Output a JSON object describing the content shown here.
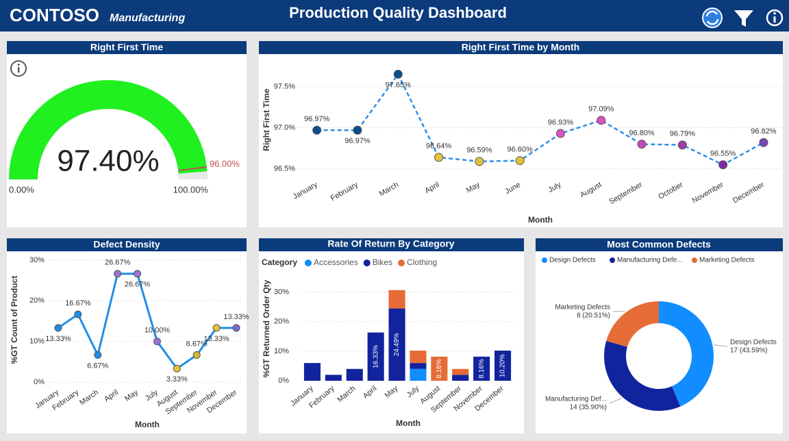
{
  "header": {
    "brand": "CONTOSO",
    "brand_sub": "Manufacturing",
    "title": "Production Quality Dashboard"
  },
  "chart_data": [
    {
      "type": "gauge",
      "title": "Right First Time",
      "values": [
        97.4
      ],
      "value_labels": [
        "97.40%"
      ],
      "color": "#20f020",
      "ylim": [
        0,
        100
      ],
      "yticks": [
        {
          "value": 0,
          "label": "0.00%"
        },
        {
          "value": 100,
          "label": "100.00%"
        }
      ],
      "target": {
        "value": 96,
        "label": "96.00%"
      },
      "target_color": "#c0504d"
    },
    {
      "type": "line",
      "title": "Right First Time by Month",
      "y_label": "Right First Time",
      "x_label": "Month",
      "categories": [
        "January",
        "February",
        "March",
        "April",
        "May",
        "June",
        "July",
        "August",
        "September",
        "October",
        "November",
        "December"
      ],
      "values": [
        96.97,
        96.97,
        97.65,
        96.64,
        96.59,
        96.6,
        96.93,
        97.09,
        96.8,
        96.79,
        96.55,
        96.82
      ],
      "value_labels": [
        "96.97%",
        "96.97%",
        "97.65%",
        "96.64%",
        "96.59%",
        "96.60%",
        "96.93%",
        "97.09%",
        "96.80%",
        "96.79%",
        "96.55%",
        "96.82%"
      ],
      "color": "#2e8ee6",
      "dashed": true,
      "point_colors": [
        "#0b4f8a",
        "#0b4f8a",
        "#0b4f8a",
        "#e2c23a",
        "#e2c23a",
        "#e2c23a",
        "#e050c8",
        "#d94fc4",
        "#c648b8",
        "#a03aa8",
        "#7d2aa6",
        "#7a45bd"
      ],
      "ylim": [
        96.43,
        97.72
      ],
      "yticks": [
        {
          "value": 96.5,
          "label": "96.5%"
        },
        {
          "value": 97,
          "label": "97.0%"
        },
        {
          "value": 97.5,
          "label": "97.5%"
        }
      ],
      "grid": true
    },
    {
      "type": "line",
      "title": "Defect Density",
      "y_label": "%GT Count of Product",
      "x_label": "Month",
      "categories": [
        "January",
        "February",
        "March",
        "April",
        "May",
        "July",
        "August",
        "September",
        "November",
        "December"
      ],
      "values": [
        13.33,
        16.67,
        6.67,
        26.67,
        26.67,
        10,
        3.33,
        6.67,
        13.33,
        13.33
      ],
      "value_labels": [
        "13.33%",
        "16.67%",
        "6.67%",
        "26.67%",
        "26.67%",
        "10.00%",
        "3.33%",
        "6.67%",
        "13.33%",
        "13.33%"
      ],
      "color": "#1f8de8",
      "dashed": false,
      "point_colors": [
        "#1f8de8",
        "#1f8de8",
        "#1f8de8",
        "#9a72d6",
        "#9a72d6",
        "#9a72d6",
        "#e8c33a",
        "#d6b82f",
        "#e8c33a",
        "#7a6ad0"
      ],
      "ylim": [
        0,
        31
      ],
      "yticks": [
        {
          "value": 0,
          "label": "0%"
        },
        {
          "value": 10,
          "label": "10%"
        },
        {
          "value": 20,
          "label": "20%"
        },
        {
          "value": 30,
          "label": "30%"
        }
      ],
      "grid": true
    },
    {
      "type": "stacked_bar",
      "title": "Rate Of Return By Category",
      "legend_title": "Category",
      "y_label": "%GT Returned Order Qty",
      "x_label": "Month",
      "categories": [
        "January",
        "February",
        "March",
        "April",
        "May",
        "July",
        "August",
        "September",
        "November",
        "December"
      ],
      "series": [
        {
          "name": "Accessories",
          "color": "#118dff",
          "values": [
            null,
            null,
            null,
            null,
            null,
            4,
            null,
            null,
            null,
            null
          ],
          "value_labels": [
            null,
            null,
            null,
            null,
            null,
            null,
            null,
            null,
            null,
            null
          ]
        },
        {
          "name": "Bikes",
          "color": "#12239e",
          "values": [
            6,
            2,
            4,
            16.33,
            24.49,
            2,
            null,
            2,
            8.16,
            10.2
          ],
          "value_labels": [
            null,
            null,
            null,
            "16.33%",
            "24.49%",
            null,
            null,
            null,
            "8.16%",
            "10.20%"
          ]
        },
        {
          "name": "Clothing",
          "color": "#e66c37",
          "values": [
            null,
            null,
            null,
            null,
            6.2,
            4.2,
            8.16,
            2,
            null,
            null
          ],
          "value_labels": [
            null,
            null,
            null,
            null,
            null,
            null,
            "8.16%",
            null,
            null,
            null
          ]
        }
      ],
      "ylim": [
        0,
        32
      ],
      "yticks": [
        {
          "value": 0,
          "label": "0%"
        },
        {
          "value": 10,
          "label": "10%"
        },
        {
          "value": 20,
          "label": "20%"
        },
        {
          "value": 30,
          "label": "30%"
        }
      ],
      "grid": true
    },
    {
      "type": "pie",
      "title": "Most Common Defects",
      "donut": true,
      "categories": [
        "Design Defects",
        "Manufacturing Defe...",
        "Marketing Defects"
      ],
      "slice_labels": [
        "Design Defects",
        "Manufacturing Def...",
        "Marketing Defects"
      ],
      "values": [
        17,
        14,
        8
      ],
      "value_labels": [
        "17 (43.59%)",
        "14 (35.90%)",
        "8 (20.51%)"
      ],
      "colors": [
        "#118dff",
        "#12239e",
        "#e66c37"
      ]
    }
  ]
}
